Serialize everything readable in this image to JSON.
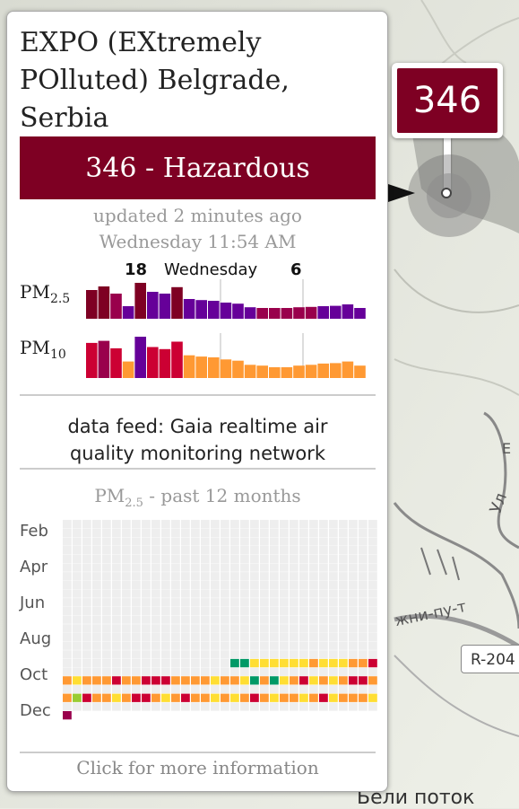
{
  "station": {
    "title_line1": "EXPO (EXtremely",
    "title_line2": "POlluted) Belgrade,",
    "title_line3": "Serbia"
  },
  "aqi": {
    "value": "346",
    "level": "Hazardous",
    "display": "346 - Hazardous",
    "color": "#7e0023"
  },
  "updated": {
    "ago": "updated 2 minutes ago",
    "time": "Wednesday 11:54 AM"
  },
  "forecast_header": {
    "max_pm25": "18",
    "day": "Wednesday",
    "min_pm25": "6"
  },
  "charts": {
    "pm25": {
      "label_main": "PM",
      "label_sub": "2.5",
      "bars": [
        {
          "v": 0.8,
          "c": "#7e0023"
        },
        {
          "v": 0.9,
          "c": "#7e0023"
        },
        {
          "v": 0.7,
          "c": "#99004c"
        },
        {
          "v": 0.35,
          "c": "#660099"
        },
        {
          "v": 1.0,
          "c": "#7e0023"
        },
        {
          "v": 0.75,
          "c": "#660099"
        },
        {
          "v": 0.7,
          "c": "#660099"
        },
        {
          "v": 0.88,
          "c": "#7e0023"
        },
        {
          "v": 0.55,
          "c": "#660099"
        },
        {
          "v": 0.52,
          "c": "#660099"
        },
        {
          "v": 0.5,
          "c": "#660099"
        },
        {
          "v": 0.45,
          "c": "#660099"
        },
        {
          "v": 0.42,
          "c": "#660099"
        },
        {
          "v": 0.32,
          "c": "#660099"
        },
        {
          "v": 0.3,
          "c": "#99004c"
        },
        {
          "v": 0.3,
          "c": "#99004c"
        },
        {
          "v": 0.3,
          "c": "#99004c"
        },
        {
          "v": 0.32,
          "c": "#99004c"
        },
        {
          "v": 0.33,
          "c": "#99004c"
        },
        {
          "v": 0.35,
          "c": "#660099"
        },
        {
          "v": 0.36,
          "c": "#660099"
        },
        {
          "v": 0.4,
          "c": "#660099"
        },
        {
          "v": 0.3,
          "c": "#660099"
        }
      ]
    },
    "pm10": {
      "label_main": "PM",
      "label_sub": "10",
      "bars": [
        {
          "v": 0.85,
          "c": "#cc0033"
        },
        {
          "v": 0.9,
          "c": "#99004c"
        },
        {
          "v": 0.72,
          "c": "#cc0033"
        },
        {
          "v": 0.4,
          "c": "#ff9933"
        },
        {
          "v": 1.0,
          "c": "#660099"
        },
        {
          "v": 0.75,
          "c": "#cc0033"
        },
        {
          "v": 0.7,
          "c": "#cc0033"
        },
        {
          "v": 0.88,
          "c": "#cc0033"
        },
        {
          "v": 0.55,
          "c": "#ff9933"
        },
        {
          "v": 0.52,
          "c": "#ff9933"
        },
        {
          "v": 0.5,
          "c": "#ff9933"
        },
        {
          "v": 0.45,
          "c": "#ff9933"
        },
        {
          "v": 0.42,
          "c": "#ff9933"
        },
        {
          "v": 0.32,
          "c": "#ff9933"
        },
        {
          "v": 0.3,
          "c": "#ff9933"
        },
        {
          "v": 0.26,
          "c": "#ff9933"
        },
        {
          "v": 0.26,
          "c": "#ff9933"
        },
        {
          "v": 0.3,
          "c": "#ff9933"
        },
        {
          "v": 0.32,
          "c": "#ff9933"
        },
        {
          "v": 0.35,
          "c": "#ff9933"
        },
        {
          "v": 0.36,
          "c": "#ff9933"
        },
        {
          "v": 0.4,
          "c": "#ff9933"
        },
        {
          "v": 0.3,
          "c": "#ff9933"
        }
      ]
    }
  },
  "data_feed": {
    "line1": "data feed: Gaia realtime air",
    "line2": "quality monitoring network"
  },
  "calendar": {
    "title_main": "PM",
    "title_sub": "2.5",
    "title_rest": " - past 12 months",
    "months": [
      "Feb",
      "Apr",
      "Jun",
      "Aug",
      "Oct",
      "Dec"
    ],
    "row_oct": [
      "#eeeeee",
      "#eeeeee",
      "#eeeeee",
      "#eeeeee",
      "#eeeeee",
      "#eeeeee",
      "#eeeeee",
      "#eeeeee",
      "#eeeeee",
      "#eeeeee",
      "#eeeeee",
      "#eeeeee",
      "#eeeeee",
      "#eeeeee",
      "#eeeeee",
      "#eeeeee",
      "#eeeeee",
      "#009966",
      "#009966",
      "#ffde33",
      "#ffde33",
      "#ffde33",
      "#ffde33",
      "#ffde33",
      "#ffde33",
      "#ff9933",
      "#ffde33",
      "#ffde33",
      "#ffde33",
      "#ff9933",
      "#ff9933",
      "#cc0033",
      "#ffde33",
      "#ff9933",
      "#ff9933"
    ],
    "row_nov": [
      "#ff9933",
      "#ffde33",
      "#ff9933",
      "#ff9933",
      "#ff9933",
      "#cc0033",
      "#ff9933",
      "#ff9933",
      "#cc0033",
      "#cc0033",
      "#cc0033",
      "#ff9933",
      "#ff9933",
      "#ff9933",
      "#ff9933",
      "#ffde33",
      "#ff9933",
      "#ff9933",
      "#ffde33",
      "#009966",
      "#ff9933",
      "#009966",
      "#ffde33",
      "#ff9933",
      "#cc0033",
      "#ffde33",
      "#ff9933",
      "#ffde33",
      "#ff9933",
      "#cc0033",
      "#cc0033",
      "#ff9933",
      "#ffde33",
      "#ff9933",
      "#cc0033"
    ],
    "row_dec": [
      "#ff9933",
      "#99cc33",
      "#cc0033",
      "#ff9933",
      "#ff9933",
      "#ffde33",
      "#ff9933",
      "#cc0033",
      "#cc0033",
      "#ff9933",
      "#ffde33",
      "#ff9933",
      "#cc0033",
      "#ff9933",
      "#ff9933",
      "#ffde33",
      "#ff9933",
      "#ffde33",
      "#ff9933",
      "#cc0033",
      "#ff9933",
      "#ffde33",
      "#ff9933",
      "#ff9933",
      "#ffde33",
      "#ff9933",
      "#cc0033",
      "#ffde33",
      "#ff9933",
      "#ff9933",
      "#ff9933",
      "#ffde33",
      "#ff9933",
      "#cc0033",
      "#660099"
    ],
    "row_jan": [
      "#99004c"
    ]
  },
  "footer": {
    "more_info": "Click for more information"
  },
  "map": {
    "marker_value": "346",
    "road_label": "R-204",
    "street_label": "жни-пу-т",
    "street_label_2": "Ул",
    "bottom_label": "Бели поток",
    "side_label": "Е"
  }
}
